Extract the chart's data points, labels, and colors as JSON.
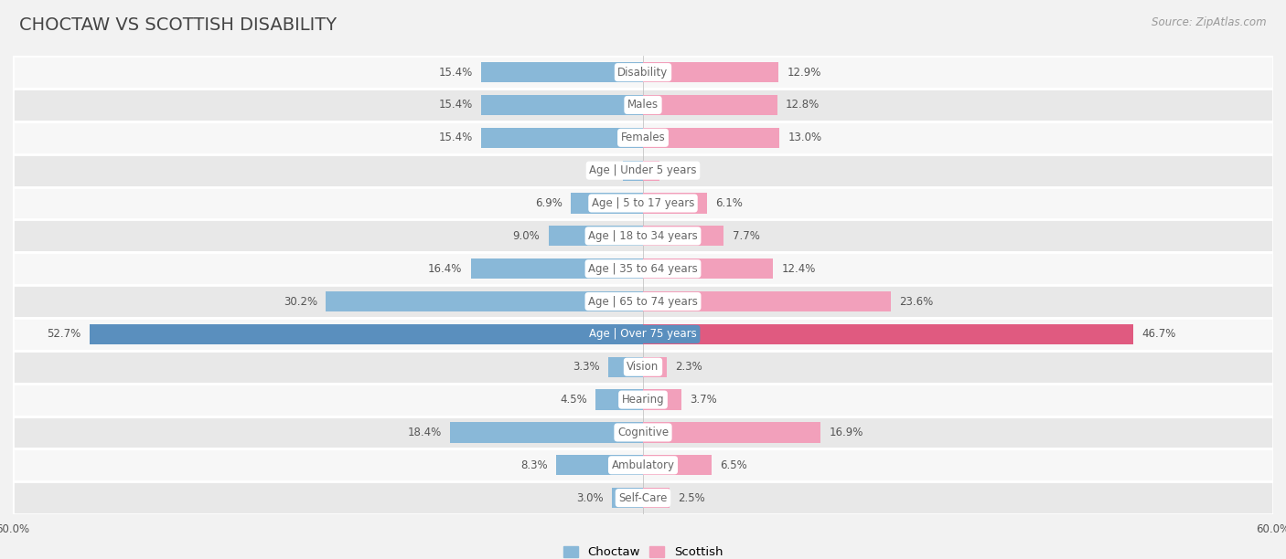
{
  "title": "CHOCTAW VS SCOTTISH DISABILITY",
  "source": "Source: ZipAtlas.com",
  "categories": [
    "Disability",
    "Males",
    "Females",
    "Age | Under 5 years",
    "Age | 5 to 17 years",
    "Age | 18 to 34 years",
    "Age | 35 to 64 years",
    "Age | 65 to 74 years",
    "Age | Over 75 years",
    "Vision",
    "Hearing",
    "Cognitive",
    "Ambulatory",
    "Self-Care"
  ],
  "choctaw_values": [
    15.4,
    15.4,
    15.4,
    1.9,
    6.9,
    9.0,
    16.4,
    30.2,
    52.7,
    3.3,
    4.5,
    18.4,
    8.3,
    3.0
  ],
  "scottish_values": [
    12.9,
    12.8,
    13.0,
    1.6,
    6.1,
    7.7,
    12.4,
    23.6,
    46.7,
    2.3,
    3.7,
    16.9,
    6.5,
    2.5
  ],
  "choctaw_color": "#89b8d8",
  "scottish_color": "#f2a0bb",
  "highlight_choctaw_color": "#5a8fbe",
  "highlight_scottish_color": "#e05a80",
  "highlight_row": 8,
  "axis_limit": 60.0,
  "background_color": "#f2f2f2",
  "row_bg_even": "#f7f7f7",
  "row_bg_odd": "#e8e8e8",
  "bar_height": 0.62,
  "title_fontsize": 14,
  "label_fontsize": 8.5,
  "value_fontsize": 8.5,
  "legend_fontsize": 9.5
}
